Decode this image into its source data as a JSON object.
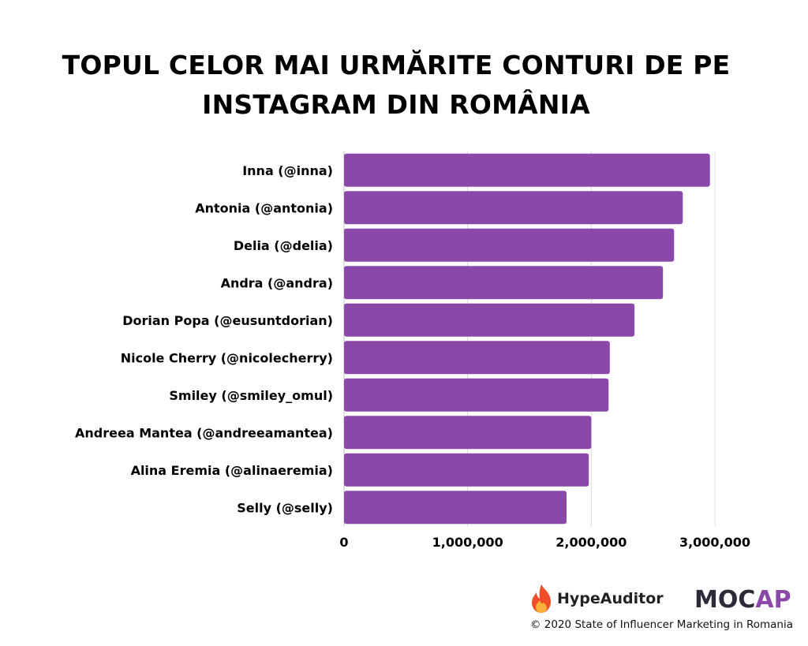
{
  "chart_data": {
    "type": "bar",
    "orientation": "horizontal",
    "title_lines": [
      "TOPUL CELOR MAI URMĂRITE CONTURI DE PE",
      "INSTAGRAM DIN ROMÂNIA"
    ],
    "categories": [
      "Inna (@inna)",
      "Antonia (@antonia)",
      "Delia (@delia)",
      "Andra (@andra)",
      "Dorian Popa (@eusuntdorian)",
      "Nicole Cherry (@nicolecherry)",
      "Smiley (@smiley_omul)",
      "Andreea Mantea (@andreeamantea)",
      "Alina Eremia (@alinaeremia)",
      "Selly (@selly)"
    ],
    "values": [
      2960000,
      2740000,
      2670000,
      2580000,
      2350000,
      2150000,
      2140000,
      2000000,
      1980000,
      1800000
    ],
    "xlim": [
      0,
      3000000
    ],
    "x_ticks": [
      0,
      1000000,
      2000000,
      3000000
    ],
    "x_tick_labels": [
      "0",
      "1,000,000",
      "2,000,000",
      "3,000,000"
    ],
    "grid": true,
    "bar_color": "#8a48a8"
  },
  "footer": {
    "brand1": "HypeAuditor",
    "brand2": "MOCAPP",
    "note": "© 2020 State of Influencer Marketing in Romania"
  }
}
